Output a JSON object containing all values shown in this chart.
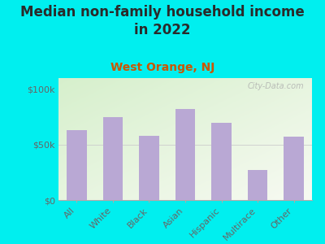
{
  "title_line1": "Median non-family household income",
  "title_line2": "in 2022",
  "subtitle": "West Orange, NJ",
  "categories": [
    "All",
    "White",
    "Black",
    "Asian",
    "Hispanic",
    "Multirace",
    "Other"
  ],
  "values": [
    63000,
    75000,
    58000,
    82000,
    70000,
    27000,
    57000
  ],
  "bar_color": "#b9a8d4",
  "background_outer": "#00efef",
  "background_inner_topleft": "#d8f0d0",
  "background_inner_bottomright": "#f8f8f2",
  "title_color": "#2a2a2a",
  "subtitle_color": "#cc5500",
  "axis_label_color": "#666666",
  "tick_color": "#666666",
  "yticks": [
    0,
    50000,
    100000
  ],
  "ytick_labels": [
    "$0",
    "$50k",
    "$100k"
  ],
  "ylim": [
    0,
    110000
  ],
  "watermark": "City-Data.com",
  "title_fontsize": 12,
  "subtitle_fontsize": 10,
  "tick_fontsize": 8,
  "bar_width": 0.55
}
